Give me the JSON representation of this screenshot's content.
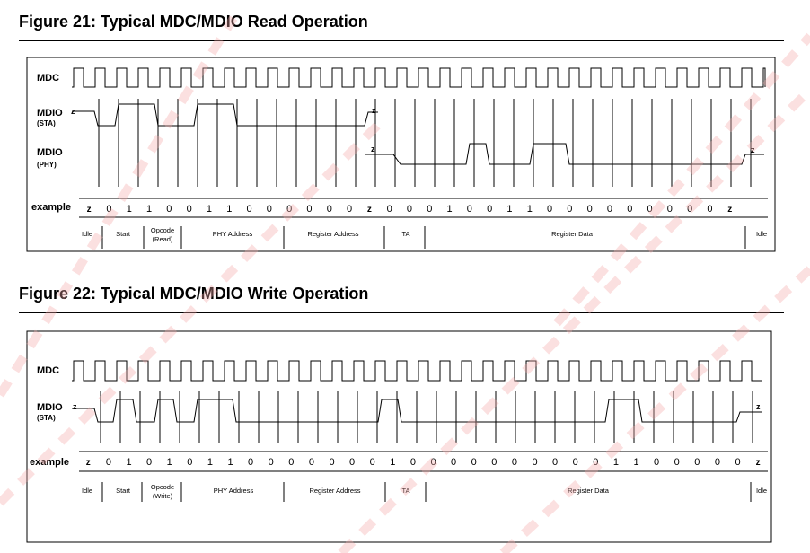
{
  "watermark_color": "#f6a8a8",
  "signal_color": "#000000",
  "figures": [
    {
      "title": "Figure 21: Typical MDC/MDIO Read Operation",
      "signals": {
        "mdc": "MDC",
        "mdio_sta": "MDIO",
        "mdio_sta_sub": "(STA)",
        "mdio_phy": "MDIO",
        "mdio_phy_sub": "(PHY)",
        "z": "z"
      },
      "example_label": "example",
      "example": [
        "z",
        "0",
        "1",
        "1",
        "0",
        "0",
        "1",
        "1",
        "0",
        "0",
        "0",
        "0",
        "0",
        "0",
        "z",
        "0",
        "0",
        "0",
        "1",
        "0",
        "0",
        "1",
        "1",
        "0",
        "0",
        "0",
        "0",
        "0",
        "0",
        "0",
        "0",
        "0",
        "z"
      ],
      "fields": [
        {
          "label": "Idle"
        },
        {
          "label": "Start"
        },
        {
          "label": "Opcode",
          "label2": "(Read)"
        },
        {
          "label": "PHY Address"
        },
        {
          "label": "Register Address"
        },
        {
          "label": "TA"
        },
        {
          "label": "Register Data"
        },
        {
          "label": "Idle"
        }
      ]
    },
    {
      "title": "Figure 22: Typical MDC/MDIO Write Operation",
      "signals": {
        "mdc": "MDC",
        "mdio_sta": "MDIO",
        "mdio_sta_sub": "(STA)",
        "z": "z"
      },
      "example_label": "example",
      "example": [
        "z",
        "0",
        "1",
        "0",
        "1",
        "0",
        "1",
        "1",
        "0",
        "0",
        "0",
        "0",
        "0",
        "0",
        "0",
        "1",
        "0",
        "0",
        "0",
        "0",
        "0",
        "0",
        "0",
        "0",
        "0",
        "0",
        "1",
        "1",
        "0",
        "0",
        "0",
        "0",
        "0",
        "z"
      ],
      "fields": [
        {
          "label": "Idle"
        },
        {
          "label": "Start"
        },
        {
          "label": "Opcode",
          "label2": "(Write)"
        },
        {
          "label": "PHY Address"
        },
        {
          "label": "Register Address"
        },
        {
          "label": "TA"
        },
        {
          "label": "Register Data"
        },
        {
          "label": "Idle"
        }
      ]
    }
  ]
}
